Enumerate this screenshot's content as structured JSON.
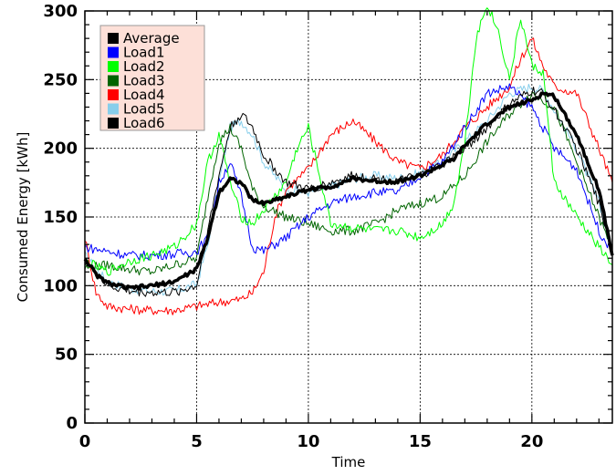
{
  "chart_data": {
    "type": "line",
    "xlabel": "Time",
    "ylabel": "Consumed Energy [kWh]",
    "xlim": [
      0,
      23.6
    ],
    "ylim": [
      0,
      300
    ],
    "x_ticks": [
      "0",
      "5",
      "10",
      "15",
      "20"
    ],
    "y_ticks": [
      "0",
      "50",
      "100",
      "150",
      "200",
      "250",
      "300"
    ],
    "grid": true,
    "legend_position": "top-left",
    "series": [
      {
        "name": "Average",
        "color": "#000000",
        "x": [
          0,
          0.5,
          1,
          2,
          3,
          4,
          5,
          5.5,
          6,
          6.5,
          7,
          7.5,
          8,
          9,
          10,
          11,
          12,
          13,
          14,
          15,
          16,
          16.5,
          17,
          18,
          19,
          20,
          20.5,
          21,
          22,
          23,
          23.6
        ],
        "y": [
          120,
          108,
          102,
          98,
          100,
          103,
          112,
          135,
          168,
          178,
          175,
          162,
          160,
          165,
          170,
          172,
          178,
          176,
          176,
          180,
          188,
          192,
          202,
          218,
          230,
          235,
          240,
          238,
          210,
          170,
          122
        ]
      },
      {
        "name": "Load1",
        "color": "#0000ff",
        "x": [
          0,
          1,
          2,
          3,
          4,
          5,
          5.5,
          6,
          6.5,
          7,
          7.5,
          8,
          9,
          10,
          11,
          12,
          13,
          14,
          15,
          16,
          17,
          18,
          19,
          20,
          21,
          22,
          23,
          23.6
        ],
        "y": [
          128,
          125,
          122,
          122,
          123,
          125,
          135,
          175,
          190,
          165,
          128,
          125,
          135,
          150,
          160,
          165,
          168,
          168,
          180,
          190,
          215,
          240,
          245,
          230,
          200,
          185,
          140,
          125
        ]
      },
      {
        "name": "Load2",
        "color": "#00ff00",
        "x": [
          0,
          1,
          2,
          3,
          4,
          5,
          5.5,
          6,
          6.5,
          7,
          7.5,
          8,
          9,
          9.5,
          10,
          10.5,
          11,
          12,
          13,
          14,
          15,
          16,
          16.5,
          17,
          17.5,
          18,
          18.5,
          19,
          19.5,
          20,
          20.5,
          21,
          22,
          23,
          23.6
        ],
        "y": [
          118,
          110,
          118,
          122,
          128,
          145,
          190,
          210,
          175,
          150,
          145,
          155,
          175,
          200,
          215,
          180,
          145,
          142,
          140,
          140,
          135,
          145,
          160,
          205,
          280,
          305,
          285,
          250,
          295,
          260,
          255,
          175,
          150,
          128,
          115
        ]
      },
      {
        "name": "Load3",
        "color": "#006400",
        "x": [
          0,
          1,
          2,
          3,
          4,
          5,
          5.5,
          6,
          6.5,
          7,
          7.5,
          8,
          9,
          10,
          11,
          12,
          13,
          14,
          15,
          16,
          17,
          18,
          19,
          20,
          21,
          22,
          23,
          23.6
        ],
        "y": [
          113,
          115,
          112,
          110,
          115,
          120,
          165,
          205,
          215,
          200,
          170,
          158,
          150,
          145,
          140,
          140,
          145,
          155,
          160,
          165,
          180,
          205,
          225,
          240,
          230,
          190,
          150,
          125
        ]
      },
      {
        "name": "Load4",
        "color": "#ff0000",
        "x": [
          0,
          0.5,
          1,
          2,
          3,
          4,
          5,
          6,
          7,
          7.5,
          8,
          8.5,
          9,
          10,
          11,
          12,
          13,
          14,
          15,
          16,
          17,
          18,
          19,
          19.5,
          20,
          20.5,
          21,
          22,
          23,
          23.6
        ],
        "y": [
          135,
          95,
          85,
          83,
          82,
          82,
          85,
          88,
          90,
          95,
          110,
          150,
          170,
          185,
          210,
          220,
          205,
          190,
          185,
          195,
          215,
          230,
          245,
          265,
          280,
          260,
          245,
          240,
          200,
          175
        ]
      },
      {
        "name": "Load5",
        "color": "#87ceeb",
        "x": [
          0,
          1,
          2,
          3,
          4,
          5,
          5.5,
          6,
          6.5,
          7,
          7.5,
          8,
          9,
          10,
          11,
          12,
          13,
          14,
          15,
          16,
          17,
          18,
          19,
          20,
          20.5,
          21,
          22,
          23,
          23.6
        ],
        "y": [
          122,
          103,
          98,
          96,
          96,
          101,
          130,
          175,
          215,
          220,
          210,
          190,
          170,
          168,
          172,
          178,
          180,
          178,
          182,
          190,
          205,
          220,
          240,
          245,
          242,
          228,
          200,
          160,
          125
        ]
      },
      {
        "name": "Load6",
        "color": "#000000",
        "x": [
          0,
          1,
          2,
          3,
          4,
          5,
          5.5,
          6,
          6.5,
          7,
          7.5,
          8,
          9,
          10,
          11,
          12,
          13,
          14,
          15,
          16,
          17,
          18,
          19,
          20,
          20.5,
          21,
          22,
          23,
          23.6
        ],
        "y": [
          118,
          100,
          96,
          95,
          95,
          100,
          140,
          180,
          215,
          225,
          215,
          195,
          175,
          170,
          175,
          180,
          178,
          176,
          180,
          188,
          200,
          215,
          232,
          242,
          240,
          228,
          200,
          160,
          125
        ]
      }
    ]
  }
}
